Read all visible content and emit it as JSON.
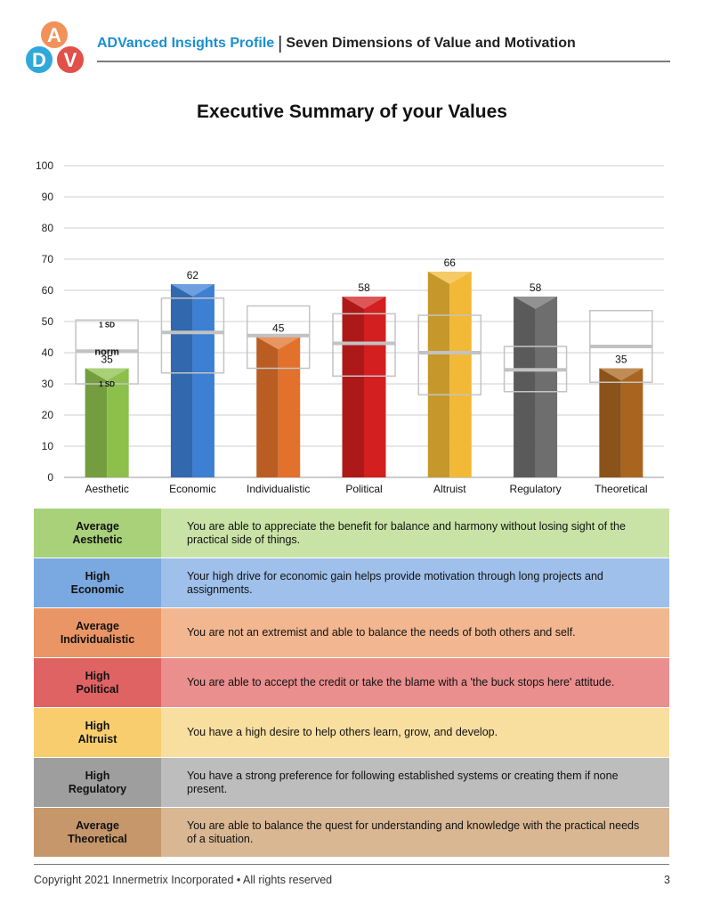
{
  "header": {
    "logo_letters": [
      "A",
      "D",
      "V"
    ],
    "brand": "ADVanced Insights Profile",
    "separator": "|",
    "subtitle": "Seven Dimensions of Value and Motivation"
  },
  "title": "Executive Summary of your Values",
  "colors": {
    "Aesthetic": "#8cc04b",
    "Economic": "#3d7fd3",
    "Individualistic": "#e2712b",
    "Political": "#d31f1f",
    "Altruist": "#f1b935",
    "Regulatory": "#6e6e6e",
    "Theoretical": "#a9651f"
  },
  "chart_data": {
    "type": "bar",
    "title": "Executive Summary of your Values",
    "categories": [
      "Aesthetic",
      "Economic",
      "Individualistic",
      "Political",
      "Altruist",
      "Regulatory",
      "Theoretical"
    ],
    "values": [
      35,
      62,
      45,
      58,
      66,
      58,
      35
    ],
    "norm": [
      40.5,
      46.5,
      45.5,
      43,
      40,
      34.5,
      42
    ],
    "sd_upper": [
      50.5,
      57.5,
      55,
      52.5,
      52,
      42,
      53.5
    ],
    "sd_lower": [
      30,
      33.5,
      35,
      32.5,
      26.5,
      27.5,
      30.5
    ],
    "ylim": [
      0,
      100
    ],
    "yticks": [
      0,
      10,
      20,
      30,
      40,
      50,
      60,
      70,
      80,
      90,
      100
    ],
    "annotations": {
      "upper": "1 SD",
      "norm": "norm",
      "lower": "1 SD"
    },
    "xlabel": "",
    "ylabel": "",
    "grid": true
  },
  "summary_rows": [
    {
      "level": "Average",
      "dimension": "Aesthetic",
      "text": "You are able to appreciate the benefit for balance and harmony without losing sight of the practical side of things.",
      "label_bg": "#a8d17a",
      "text_bg": "#c9e3a6"
    },
    {
      "level": "High",
      "dimension": "Economic",
      "text": "Your high drive for economic gain helps provide motivation through long projects and assignments.",
      "label_bg": "#7aa8e0",
      "text_bg": "#9ec0ea"
    },
    {
      "level": "Average",
      "dimension": "Individualistic",
      "text": "You are not an extremist and able to balance the needs of both others and self.",
      "label_bg": "#ea9565",
      "text_bg": "#f2b790"
    },
    {
      "level": "High",
      "dimension": "Political",
      "text": "You are able to accept the credit or take the blame with a 'the buck stops here' attitude.",
      "label_bg": "#e06363",
      "text_bg": "#ea8e8e"
    },
    {
      "level": "High",
      "dimension": "Altruist",
      "text": "You have a high desire to help others learn, grow, and develop.",
      "label_bg": "#f7cd6e",
      "text_bg": "#f9df9f"
    },
    {
      "level": "High",
      "dimension": "Regulatory",
      "text": "You have a strong preference for following established systems or creating them if none present.",
      "label_bg": "#9e9e9e",
      "text_bg": "#bdbdbd"
    },
    {
      "level": "Average",
      "dimension": "Theoretical",
      "text": "You are able to balance the quest for understanding and knowledge with the practical needs of a situation.",
      "label_bg": "#c6976b",
      "text_bg": "#d9b793"
    }
  ],
  "footer": {
    "copyright": "Copyright 2021 Innermetrix Incorporated • All rights reserved",
    "page_number": "3"
  }
}
